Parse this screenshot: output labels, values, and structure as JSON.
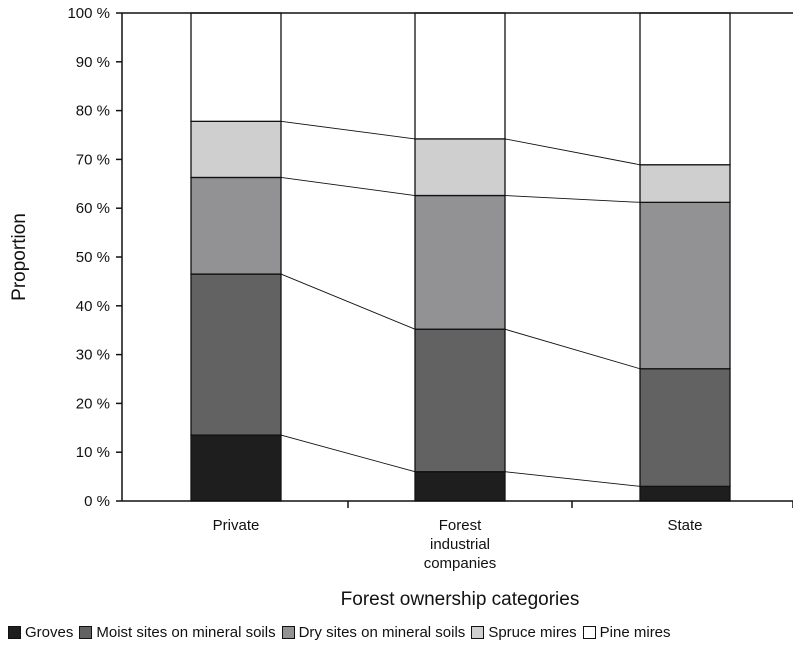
{
  "chart_data": {
    "type": "bar",
    "stacked": true,
    "orientation": "vertical",
    "percent_axis": true,
    "categories": [
      "Private",
      "Forest\nindustrial\ncompanies",
      "State"
    ],
    "series": [
      {
        "name": "Groves",
        "color": "#1e1e1e",
        "values": [
          13.5,
          6.0,
          3.0
        ]
      },
      {
        "name": "Moist sites on mineral soils",
        "color": "#626262",
        "values": [
          33.0,
          29.2,
          24.1
        ]
      },
      {
        "name": "Dry sites on mineral soils",
        "color": "#929294",
        "values": [
          19.8,
          27.4,
          34.1
        ]
      },
      {
        "name": "Spruce mires",
        "color": "#cfcfd0",
        "values": [
          11.5,
          11.6,
          7.7
        ]
      },
      {
        "name": "Pine mires",
        "color": "#ffffff",
        "values": [
          22.2,
          25.8,
          31.1
        ]
      }
    ],
    "xlabel": "Forest ownership categories",
    "ylabel": "Proportion",
    "ylim": [
      0,
      100
    ],
    "yticks": [
      "0 %",
      "10 %",
      "20 %",
      "30 %",
      "40 %",
      "50 %",
      "60 %",
      "70 %",
      "80 %",
      "90 %",
      "100 %"
    ],
    "connector_lines": true,
    "grid": false,
    "legend_position": "bottom"
  }
}
